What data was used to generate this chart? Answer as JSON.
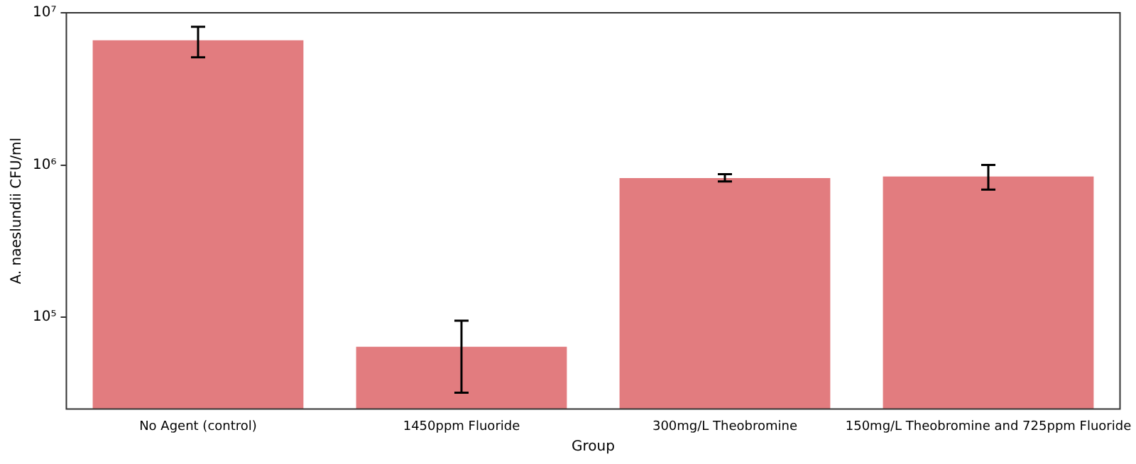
{
  "chart_data": {
    "type": "bar",
    "xlabel": "Group",
    "ylabel": "A. naeslundii CFU/ml",
    "categories": [
      "No Agent (control)",
      "1450ppm Fluoride",
      "300mg/L Theobromine",
      "150mg/L Theobromine and 725ppm Fluoride"
    ],
    "values": [
      6600000,
      64000,
      820000,
      840000
    ],
    "errors": [
      [
        5100000,
        8100000
      ],
      [
        32000,
        95000
      ],
      [
        780000,
        870000
      ],
      [
        690000,
        1000000
      ]
    ],
    "color": "#e27c7f",
    "log": true,
    "ylim": [
      25000,
      10000000
    ],
    "yticks": [
      {
        "value": 100000,
        "label": "10⁵"
      },
      {
        "value": 1000000,
        "label": "10⁶"
      },
      {
        "value": 10000000,
        "label": "10⁷"
      }
    ],
    "grid": false,
    "legend": false
  }
}
